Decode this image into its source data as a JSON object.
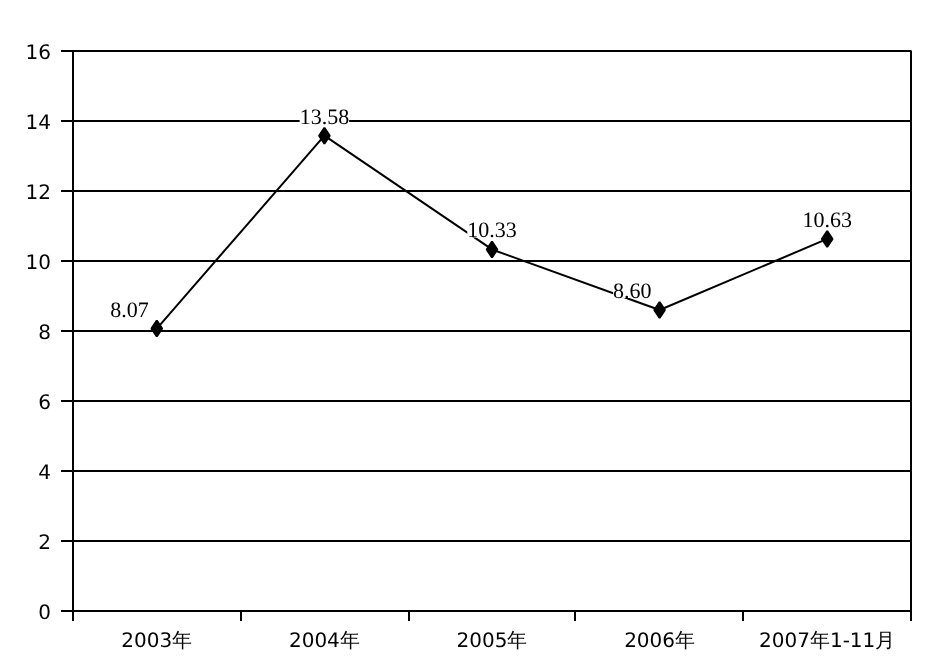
{
  "chart_data": {
    "type": "line",
    "categories": [
      "2003年",
      "2004年",
      "2005年",
      "2006年",
      "2007年1-11月"
    ],
    "series": [
      {
        "color": "#000000",
        "values": [
          8.07,
          13.58,
          10.33,
          8.6,
          10.63
        ],
        "value_labels": [
          "8.07",
          "13.58",
          "10.33",
          "8.60",
          "10.63"
        ]
      }
    ],
    "ylim": [
      0,
      16
    ],
    "yticks": [
      0,
      2,
      4,
      6,
      8,
      10,
      12,
      14,
      16
    ],
    "grid": "y",
    "marker": "diamond",
    "line_style": "solid"
  }
}
